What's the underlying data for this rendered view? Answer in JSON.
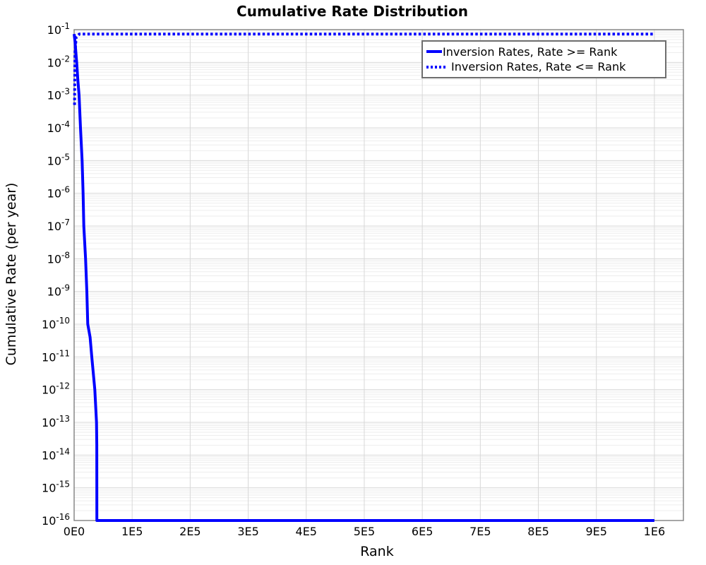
{
  "chart_data": {
    "type": "line",
    "title": "Cumulative Rate Distribution",
    "xlabel": "Rank",
    "ylabel": "Cumulative Rate (per year)",
    "x_axis": {
      "tick_labels": [
        "0E0",
        "1E5",
        "2E5",
        "3E5",
        "4E5",
        "5E5",
        "6E5",
        "7E5",
        "8E5",
        "9E5",
        "1E6"
      ],
      "tick_values": [
        0,
        100000,
        200000,
        300000,
        400000,
        500000,
        600000,
        700000,
        800000,
        900000,
        1000000
      ],
      "lim": [
        0,
        1050000
      ],
      "scale": "linear"
    },
    "y_axis": {
      "tick_base": "10",
      "tick_exponents": [
        -1,
        -2,
        -3,
        -4,
        -5,
        -6,
        -7,
        -8,
        -9,
        -10,
        -11,
        -12,
        -13,
        -14,
        -15,
        -16
      ],
      "lim_exponents": [
        -16,
        -1
      ],
      "scale": "log"
    },
    "grid": {
      "major": true,
      "minor": true
    },
    "legend_position": "upper right",
    "colors": {
      "line": "#0000ff",
      "grid_major": "#d8d8d8",
      "grid_minor": "#ededed",
      "frame": "#7f7f7f",
      "legend_border": "#6e6e6e",
      "text": "#000000"
    },
    "series": [
      {
        "name": "Inversion Rates, Rate >= Rank",
        "line_style": "solid",
        "color": "#0000ff",
        "points": [
          [
            0,
            0.074
          ],
          [
            1500,
            0.045
          ],
          [
            3000,
            0.02
          ],
          [
            4400,
            0.01
          ],
          [
            6300,
            0.003
          ],
          [
            8500,
            0.001
          ],
          [
            11000,
            0.0001
          ],
          [
            13800,
            1e-05
          ],
          [
            15400,
            1e-06
          ],
          [
            16700,
            1e-07
          ],
          [
            19700,
            1e-08
          ],
          [
            21900,
            1e-09
          ],
          [
            23500,
            1e-10
          ],
          [
            27500,
            4e-11
          ],
          [
            30400,
            1e-11
          ],
          [
            35600,
            1e-12
          ],
          [
            38600,
            1e-13
          ],
          [
            39000,
            2e-14
          ],
          [
            39200,
            1e-16
          ],
          [
            1000000,
            1e-16
          ]
        ]
      },
      {
        "name": "Inversion Rates, Rate <= Rank",
        "line_style": "dotted",
        "color": "#0000ff",
        "points": [
          [
            700,
            0.0005
          ],
          [
            1500,
            0.02
          ],
          [
            3500,
            0.06
          ],
          [
            9000,
            0.0735
          ],
          [
            1000000,
            0.0735
          ]
        ]
      }
    ]
  }
}
